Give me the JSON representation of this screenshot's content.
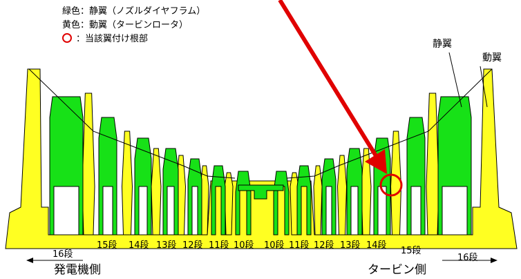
{
  "legend": {
    "green": "緑色：静翼（ノズルダイヤフラム）",
    "yellow": "黄色：動翼（タービンロータ）",
    "circle": "：当該翼付け根部"
  },
  "callouts": {
    "stationary": "静翼",
    "moving": "動翼"
  },
  "stage_labels": [
    "16段",
    "15段",
    "14段",
    "13段",
    "12段",
    "11段",
    "10段",
    "10段",
    "11段",
    "12段",
    "13段",
    "14段",
    "15段",
    "16段"
  ],
  "sides": {
    "generator": "発電機側",
    "turbine": "タービン側"
  },
  "colors": {
    "stationary": "#17e117",
    "moving": "#ffff22",
    "marker": "#e00000"
  }
}
